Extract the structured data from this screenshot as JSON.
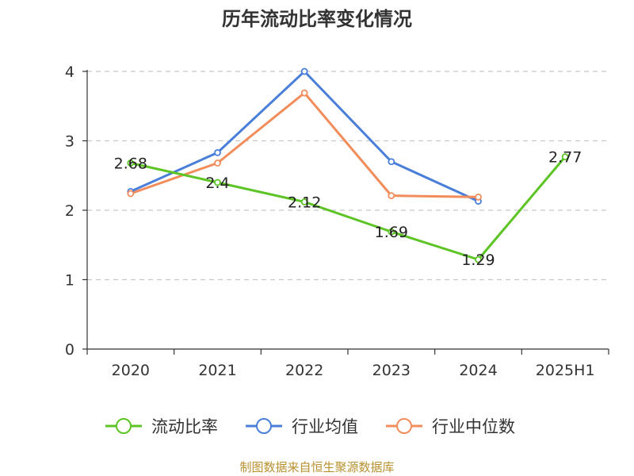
{
  "chart_data": {
    "type": "line",
    "title": "历年流动比率变化情况",
    "categories": [
      "2020",
      "2021",
      "2022",
      "2023",
      "2024",
      "2025H1"
    ],
    "ylim": [
      0,
      4
    ],
    "yticks": [
      "0",
      "1",
      "2",
      "3",
      "4"
    ],
    "grid": true,
    "legend_placement": "bottom",
    "series": [
      {
        "name": "流动比率",
        "color": "#5cc424",
        "values": [
          2.68,
          2.4,
          2.12,
          1.69,
          1.29,
          2.77
        ],
        "labels": [
          "2.68",
          "2.4",
          "2.12",
          "1.69",
          "1.29",
          "2.77"
        ]
      },
      {
        "name": "行业均值",
        "color": "#4a7fd9",
        "values": [
          2.27,
          2.83,
          4.0,
          2.7,
          2.13,
          null
        ]
      },
      {
        "name": "行业中位数",
        "color": "#f28c5a",
        "values": [
          2.24,
          2.68,
          3.69,
          2.21,
          2.19,
          null
        ]
      }
    ]
  },
  "source_text": "制图数据来自恒生聚源数据库"
}
